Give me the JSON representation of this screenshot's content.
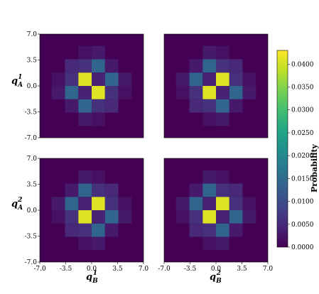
{
  "chart_data": [
    {
      "type": "heatmap",
      "panel": "top-left",
      "xlabel": "",
      "ylabel": "q_A^1",
      "xlim": [
        -7.0,
        7.0
      ],
      "ylim": [
        -7.0,
        7.0
      ],
      "yticks": [
        "7.0",
        "3.5",
        "0.0",
        "-3.5",
        "-7.0"
      ],
      "xticks": [],
      "cells": [
        {
          "x": -0.9,
          "y": 0.9,
          "v": 0.041
        },
        {
          "x": 0.9,
          "y": -0.9,
          "v": 0.041
        },
        {
          "x": -2.7,
          "y": -0.9,
          "v": 0.014
        },
        {
          "x": 2.7,
          "y": 0.9,
          "v": 0.014
        },
        {
          "x": -0.9,
          "y": -2.7,
          "v": 0.014
        },
        {
          "x": 0.9,
          "y": 2.7,
          "v": 0.014
        },
        {
          "x": -2.7,
          "y": 0.9,
          "v": 0.006
        },
        {
          "x": 2.7,
          "y": -0.9,
          "v": 0.006
        },
        {
          "x": -0.9,
          "y": 2.7,
          "v": 0.006
        },
        {
          "x": 0.9,
          "y": -2.7,
          "v": 0.006
        },
        {
          "x": -0.9,
          "y": -0.9,
          "v": 0.004
        },
        {
          "x": 0.9,
          "y": 0.9,
          "v": 0.004
        },
        {
          "x": -2.7,
          "y": 2.7,
          "v": 0.005
        },
        {
          "x": 2.7,
          "y": -2.7,
          "v": 0.005
        },
        {
          "x": -2.7,
          "y": -2.7,
          "v": 0.003
        },
        {
          "x": 2.7,
          "y": 2.7,
          "v": 0.003
        },
        {
          "x": -4.5,
          "y": -0.9,
          "v": 0.003
        },
        {
          "x": 4.5,
          "y": 0.9,
          "v": 0.003
        },
        {
          "x": -0.9,
          "y": -4.5,
          "v": 0.003
        },
        {
          "x": 0.9,
          "y": 4.5,
          "v": 0.003
        },
        {
          "x": -4.5,
          "y": 0.9,
          "v": 0.002
        },
        {
          "x": 4.5,
          "y": -0.9,
          "v": 0.002
        },
        {
          "x": -0.9,
          "y": 4.5,
          "v": 0.002
        },
        {
          "x": 0.9,
          "y": -4.5,
          "v": 0.002
        }
      ]
    },
    {
      "type": "heatmap",
      "panel": "top-right",
      "xlabel": "",
      "ylabel": "",
      "xlim": [
        -7.0,
        7.0
      ],
      "ylim": [
        -7.0,
        7.0
      ],
      "yticks": [],
      "xticks": [],
      "cells": [
        {
          "x": 0.9,
          "y": 0.9,
          "v": 0.041
        },
        {
          "x": -0.9,
          "y": -0.9,
          "v": 0.041
        },
        {
          "x": 2.7,
          "y": -0.9,
          "v": 0.014
        },
        {
          "x": -2.7,
          "y": 0.9,
          "v": 0.014
        },
        {
          "x": -0.9,
          "y": 2.7,
          "v": 0.014
        },
        {
          "x": 0.9,
          "y": -2.7,
          "v": 0.014
        },
        {
          "x": 2.7,
          "y": 0.9,
          "v": 0.006
        },
        {
          "x": -2.7,
          "y": -0.9,
          "v": 0.006
        },
        {
          "x": 0.9,
          "y": 2.7,
          "v": 0.006
        },
        {
          "x": -0.9,
          "y": -2.7,
          "v": 0.006
        },
        {
          "x": 0.9,
          "y": -0.9,
          "v": 0.004
        },
        {
          "x": -0.9,
          "y": 0.9,
          "v": 0.004
        },
        {
          "x": 2.7,
          "y": 2.7,
          "v": 0.005
        },
        {
          "x": -2.7,
          "y": -2.7,
          "v": 0.005
        },
        {
          "x": 2.7,
          "y": -2.7,
          "v": 0.003
        },
        {
          "x": -2.7,
          "y": 2.7,
          "v": 0.003
        },
        {
          "x": 4.5,
          "y": -0.9,
          "v": 0.003
        },
        {
          "x": -4.5,
          "y": 0.9,
          "v": 0.003
        },
        {
          "x": -0.9,
          "y": 4.5,
          "v": 0.003
        },
        {
          "x": 0.9,
          "y": -4.5,
          "v": 0.003
        },
        {
          "x": 4.5,
          "y": 0.9,
          "v": 0.002
        },
        {
          "x": -4.5,
          "y": -0.9,
          "v": 0.002
        },
        {
          "x": 0.9,
          "y": 4.5,
          "v": 0.002
        },
        {
          "x": -0.9,
          "y": -4.5,
          "v": 0.002
        }
      ]
    },
    {
      "type": "heatmap",
      "panel": "bottom-left",
      "xlabel": "q_B^1",
      "ylabel": "q_A^2",
      "xlim": [
        -7.0,
        7.0
      ],
      "ylim": [
        -7.0,
        7.0
      ],
      "yticks": [
        "7.0",
        "3.5",
        "0.0",
        "-3.5",
        "-7.0"
      ],
      "xticks": [
        "-7.0",
        "-3.5",
        "0.0",
        "3.5",
        "7.0"
      ],
      "cells": [
        {
          "x": 0.9,
          "y": 0.9,
          "v": 0.041
        },
        {
          "x": -0.9,
          "y": -0.9,
          "v": 0.041
        },
        {
          "x": 2.7,
          "y": -0.9,
          "v": 0.014
        },
        {
          "x": -2.7,
          "y": 0.9,
          "v": 0.014
        },
        {
          "x": -0.9,
          "y": 2.7,
          "v": 0.014
        },
        {
          "x": 0.9,
          "y": -2.7,
          "v": 0.014
        },
        {
          "x": 2.7,
          "y": 0.9,
          "v": 0.006
        },
        {
          "x": -2.7,
          "y": -0.9,
          "v": 0.006
        },
        {
          "x": 0.9,
          "y": 2.7,
          "v": 0.006
        },
        {
          "x": -0.9,
          "y": -2.7,
          "v": 0.006
        },
        {
          "x": 0.9,
          "y": -0.9,
          "v": 0.004
        },
        {
          "x": -0.9,
          "y": 0.9,
          "v": 0.004
        },
        {
          "x": 2.7,
          "y": 2.7,
          "v": 0.005
        },
        {
          "x": -2.7,
          "y": -2.7,
          "v": 0.005
        },
        {
          "x": 2.7,
          "y": -2.7,
          "v": 0.003
        },
        {
          "x": -2.7,
          "y": 2.7,
          "v": 0.003
        },
        {
          "x": 4.5,
          "y": -0.9,
          "v": 0.003
        },
        {
          "x": -4.5,
          "y": 0.9,
          "v": 0.003
        },
        {
          "x": -0.9,
          "y": 4.5,
          "v": 0.003
        },
        {
          "x": 0.9,
          "y": -4.5,
          "v": 0.003
        },
        {
          "x": 4.5,
          "y": 0.9,
          "v": 0.002
        },
        {
          "x": -4.5,
          "y": -0.9,
          "v": 0.002
        },
        {
          "x": 0.9,
          "y": 4.5,
          "v": 0.002
        },
        {
          "x": -0.9,
          "y": -4.5,
          "v": 0.002
        }
      ]
    },
    {
      "type": "heatmap",
      "panel": "bottom-right",
      "xlabel": "q_B^2",
      "ylabel": "",
      "xlim": [
        -7.0,
        7.0
      ],
      "ylim": [
        -7.0,
        7.0
      ],
      "yticks": [],
      "xticks": [
        "-7.0",
        "-3.5",
        "0.0",
        "3.5",
        "7.0"
      ],
      "cells": [
        {
          "x": -0.9,
          "y": -0.9,
          "v": 0.041
        },
        {
          "x": 0.9,
          "y": 0.9,
          "v": 0.041
        },
        {
          "x": 2.7,
          "y": -0.9,
          "v": 0.014
        },
        {
          "x": -2.7,
          "y": 0.9,
          "v": 0.014
        },
        {
          "x": -0.9,
          "y": 2.7,
          "v": 0.014
        },
        {
          "x": 0.9,
          "y": -2.7,
          "v": 0.014
        },
        {
          "x": 2.7,
          "y": 0.9,
          "v": 0.006
        },
        {
          "x": -2.7,
          "y": -0.9,
          "v": 0.006
        },
        {
          "x": 0.9,
          "y": 2.7,
          "v": 0.006
        },
        {
          "x": -0.9,
          "y": -2.7,
          "v": 0.006
        },
        {
          "x": 0.9,
          "y": -0.9,
          "v": 0.004
        },
        {
          "x": -0.9,
          "y": 0.9,
          "v": 0.004
        },
        {
          "x": 2.7,
          "y": 2.7,
          "v": 0.005
        },
        {
          "x": -2.7,
          "y": -2.7,
          "v": 0.005
        },
        {
          "x": 2.7,
          "y": -2.7,
          "v": 0.003
        },
        {
          "x": -2.7,
          "y": 2.7,
          "v": 0.003
        },
        {
          "x": 4.5,
          "y": -0.9,
          "v": 0.003
        },
        {
          "x": -4.5,
          "y": 0.9,
          "v": 0.003
        },
        {
          "x": -0.9,
          "y": 4.5,
          "v": 0.003
        },
        {
          "x": 0.9,
          "y": -4.5,
          "v": 0.003
        },
        {
          "x": 4.5,
          "y": 0.9,
          "v": 0.002
        },
        {
          "x": -4.5,
          "y": -0.9,
          "v": 0.002
        },
        {
          "x": 0.9,
          "y": 4.5,
          "v": 0.002
        },
        {
          "x": -0.9,
          "y": -4.5,
          "v": 0.002
        }
      ]
    }
  ],
  "colorbar": {
    "label": "Probability",
    "range": [
      0.0,
      0.043
    ],
    "ticks": [
      "0.0000",
      "0.0050",
      "0.0100",
      "0.0150",
      "0.0200",
      "0.0250",
      "0.0300",
      "0.0350",
      "0.0400"
    ],
    "colormap": "viridis",
    "colors": [
      "#440154",
      "#482475",
      "#414487",
      "#355f8d",
      "#2a788e",
      "#21918c",
      "#22a884",
      "#44bf70",
      "#7ad151",
      "#bddf26",
      "#fde725"
    ]
  },
  "axis_labels": {
    "qA1": {
      "base": "q",
      "sub": "A",
      "sup": "1"
    },
    "qA2": {
      "base": "q",
      "sub": "A",
      "sup": "2"
    },
    "qB1": {
      "base": "q",
      "sub": "B",
      "sup": "1"
    },
    "qB2": {
      "base": "q",
      "sub": "B",
      "sup": "2"
    }
  }
}
